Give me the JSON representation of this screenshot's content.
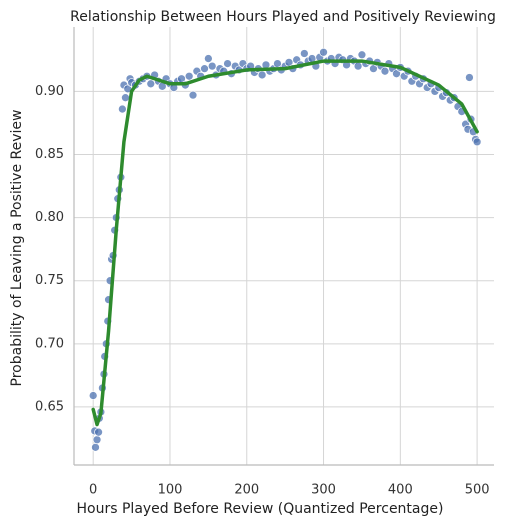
{
  "chart_data": {
    "type": "scatter",
    "title": "Relationship Between Hours Played and Positively Reviewing",
    "xlabel": "Hours Played Before Review (Quantized Percentage)",
    "ylabel": "Probability of Leaving a Positive Review",
    "xlim": [
      -25,
      522
    ],
    "ylim": [
      0.604,
      0.951
    ],
    "xticks": [
      0,
      100,
      200,
      300,
      400,
      500
    ],
    "yticks": [
      0.65,
      {
        "value": 0.7,
        "label": "0.70"
      },
      0.75,
      {
        "value": 0.8,
        "label": "0.80"
      },
      0.85,
      {
        "value": 0.9,
        "label": "0.90"
      }
    ],
    "grid": true,
    "series": [
      {
        "type": "scatter",
        "color": "#4c72b0",
        "x": [
          0,
          2,
          3,
          5,
          7,
          8,
          10,
          12,
          14,
          15,
          17,
          19,
          20,
          22,
          24,
          26,
          28,
          30,
          32,
          34,
          36,
          38,
          40,
          42,
          45,
          48,
          50,
          55,
          60,
          65,
          70,
          75,
          80,
          85,
          90,
          95,
          100,
          105,
          110,
          115,
          120,
          125,
          130,
          135,
          140,
          145,
          150,
          155,
          160,
          165,
          170,
          175,
          180,
          185,
          190,
          195,
          200,
          205,
          210,
          215,
          220,
          225,
          230,
          235,
          240,
          245,
          250,
          255,
          260,
          265,
          270,
          275,
          280,
          285,
          290,
          295,
          300,
          305,
          310,
          315,
          320,
          325,
          330,
          335,
          340,
          345,
          350,
          355,
          360,
          365,
          370,
          375,
          380,
          385,
          390,
          395,
          400,
          405,
          410,
          415,
          420,
          425,
          430,
          435,
          440,
          445,
          450,
          455,
          460,
          465,
          470,
          475,
          480,
          485,
          488,
          490,
          492,
          495,
          498,
          500
        ],
        "values": [
          0.659,
          0.631,
          0.618,
          0.624,
          0.63,
          0.641,
          0.646,
          0.665,
          0.676,
          0.69,
          0.7,
          0.718,
          0.735,
          0.75,
          0.767,
          0.77,
          0.79,
          0.8,
          0.815,
          0.822,
          0.832,
          0.886,
          0.905,
          0.895,
          0.902,
          0.91,
          0.907,
          0.905,
          0.908,
          0.91,
          0.912,
          0.906,
          0.913,
          0.908,
          0.904,
          0.91,
          0.906,
          0.903,
          0.908,
          0.91,
          0.905,
          0.912,
          0.897,
          0.916,
          0.912,
          0.918,
          0.926,
          0.92,
          0.913,
          0.918,
          0.916,
          0.922,
          0.914,
          0.92,
          0.917,
          0.922,
          0.918,
          0.92,
          0.915,
          0.918,
          0.913,
          0.921,
          0.916,
          0.918,
          0.922,
          0.917,
          0.92,
          0.923,
          0.918,
          0.925,
          0.921,
          0.93,
          0.924,
          0.926,
          0.92,
          0.927,
          0.931,
          0.924,
          0.926,
          0.922,
          0.927,
          0.925,
          0.921,
          0.926,
          0.924,
          0.92,
          0.929,
          0.922,
          0.924,
          0.918,
          0.923,
          0.92,
          0.916,
          0.922,
          0.918,
          0.914,
          0.919,
          0.912,
          0.916,
          0.908,
          0.912,
          0.906,
          0.91,
          0.903,
          0.906,
          0.9,
          0.903,
          0.896,
          0.899,
          0.893,
          0.895,
          0.888,
          0.884,
          0.874,
          0.87,
          0.911,
          0.878,
          0.868,
          0.862,
          0.86
        ]
      },
      {
        "type": "line",
        "color": "#2e8b2e",
        "x": [
          0,
          5,
          10,
          20,
          30,
          40,
          50,
          60,
          70,
          80,
          100,
          120,
          150,
          200,
          250,
          300,
          350,
          400,
          450,
          480,
          500
        ],
        "values": [
          0.648,
          0.636,
          0.645,
          0.71,
          0.79,
          0.86,
          0.9,
          0.909,
          0.912,
          0.91,
          0.906,
          0.906,
          0.912,
          0.917,
          0.918,
          0.924,
          0.924,
          0.919,
          0.905,
          0.89,
          0.868
        ]
      }
    ]
  }
}
